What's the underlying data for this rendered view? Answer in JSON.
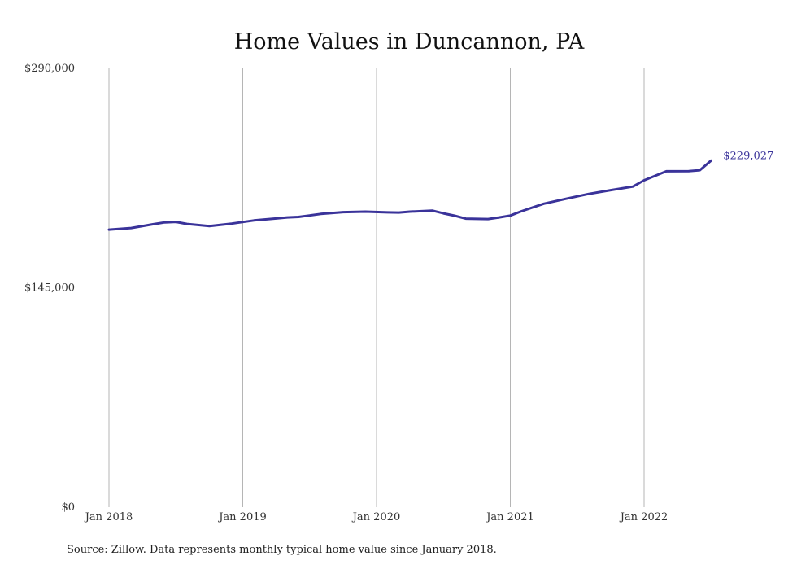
{
  "chart_data": {
    "type": "line",
    "title": "Home Values in Duncannon, PA",
    "xlabel": "",
    "ylabel": "",
    "ylim": [
      0,
      290000
    ],
    "y_ticks": [
      {
        "value": 0,
        "label": "$0"
      },
      {
        "value": 145000,
        "label": "$145,000"
      },
      {
        "value": 290000,
        "label": "$290,000"
      }
    ],
    "x_ticks": [
      {
        "value": "2018-01",
        "label": "Jan 2018"
      },
      {
        "value": "2019-01",
        "label": "Jan 2019"
      },
      {
        "value": "2020-01",
        "label": "Jan 2020"
      },
      {
        "value": "2021-01",
        "label": "Jan 2021"
      },
      {
        "value": "2022-01",
        "label": "Jan 2022"
      }
    ],
    "grid": {
      "vertical": true,
      "horizontal": false
    },
    "series": [
      {
        "color": "#3a339a",
        "end_label": "$229,027",
        "points": [
          {
            "x": "2018-01",
            "y": 183400
          },
          {
            "x": "2018-03",
            "y": 184500
          },
          {
            "x": "2018-05",
            "y": 187000
          },
          {
            "x": "2018-06",
            "y": 188200
          },
          {
            "x": "2018-07",
            "y": 188500
          },
          {
            "x": "2018-08",
            "y": 187200
          },
          {
            "x": "2018-10",
            "y": 185800
          },
          {
            "x": "2018-12",
            "y": 187400
          },
          {
            "x": "2019-02",
            "y": 189500
          },
          {
            "x": "2019-04",
            "y": 190800
          },
          {
            "x": "2019-05",
            "y": 191500
          },
          {
            "x": "2019-06",
            "y": 191800
          },
          {
            "x": "2019-07",
            "y": 192800
          },
          {
            "x": "2019-08",
            "y": 193800
          },
          {
            "x": "2019-10",
            "y": 195000
          },
          {
            "x": "2019-12",
            "y": 195300
          },
          {
            "x": "2020-02",
            "y": 194800
          },
          {
            "x": "2020-03",
            "y": 194700
          },
          {
            "x": "2020-04",
            "y": 195300
          },
          {
            "x": "2020-06",
            "y": 196000
          },
          {
            "x": "2020-07",
            "y": 194200
          },
          {
            "x": "2020-08",
            "y": 192600
          },
          {
            "x": "2020-09",
            "y": 190700
          },
          {
            "x": "2020-11",
            "y": 190400
          },
          {
            "x": "2020-12",
            "y": 191500
          },
          {
            "x": "2021-01",
            "y": 192700
          },
          {
            "x": "2021-02",
            "y": 195600
          },
          {
            "x": "2021-04",
            "y": 200500
          },
          {
            "x": "2021-06",
            "y": 203800
          },
          {
            "x": "2021-08",
            "y": 207000
          },
          {
            "x": "2021-10",
            "y": 209500
          },
          {
            "x": "2021-11",
            "y": 210700
          },
          {
            "x": "2021-12",
            "y": 211900
          },
          {
            "x": "2022-01",
            "y": 216000
          },
          {
            "x": "2022-03",
            "y": 222000
          },
          {
            "x": "2022-05",
            "y": 222100
          },
          {
            "x": "2022-06",
            "y": 222700
          },
          {
            "x": "2022-07",
            "y": 229027
          }
        ]
      }
    ]
  },
  "footer": {
    "source": "Source: Zillow. Data represents monthly typical home value since January 2018."
  }
}
